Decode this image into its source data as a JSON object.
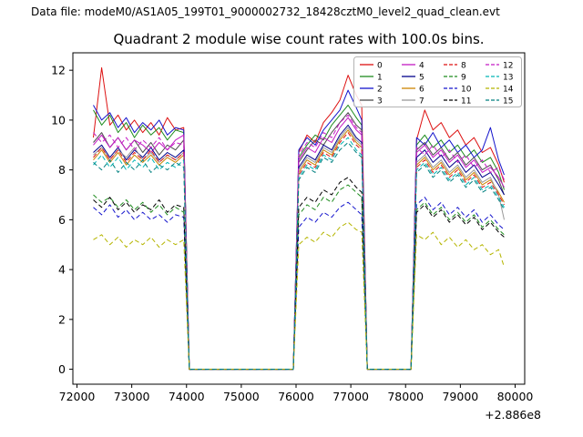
{
  "header": {
    "data_file_label": "Data file: modeM0/AS1A05_199T01_9000002732_18428cztM0_level2_quad_clean.evt"
  },
  "chart_data": {
    "type": "line",
    "title": "Quadrant 2 module wise count rates with 100.0s bins.",
    "xlabel": "",
    "ylabel": "",
    "x_offset_label": "+2.886e8",
    "xlim": [
      71925,
      80175
    ],
    "ylim": [
      -0.6,
      12.7
    ],
    "x_ticks": [
      72000,
      73000,
      74000,
      75000,
      76000,
      77000,
      78000,
      79000,
      80000
    ],
    "y_ticks": [
      0,
      2,
      4,
      6,
      8,
      10,
      12
    ],
    "grid": false,
    "legend_position": "upper-right, 4 columns, column-major",
    "x": [
      72300,
      72450,
      72600,
      72750,
      72900,
      73050,
      73200,
      73350,
      73500,
      73650,
      73800,
      73950,
      74050,
      75950,
      76050,
      76200,
      76350,
      76500,
      76650,
      76800,
      76950,
      77100,
      77200,
      77300,
      78100,
      78200,
      78350,
      78500,
      78650,
      78800,
      78950,
      79100,
      79250,
      79400,
      79550,
      79700,
      79800
    ],
    "series": [
      {
        "name": "0",
        "color": "#dd1111",
        "dash": false,
        "values": [
          9.3,
          12.1,
          9.8,
          10.2,
          9.6,
          10.0,
          9.5,
          9.9,
          9.4,
          10.1,
          9.6,
          9.7,
          0,
          0,
          8.7,
          9.4,
          9.1,
          9.9,
          10.3,
          10.8,
          11.8,
          11.0,
          10.6,
          0,
          0,
          9.2,
          10.4,
          9.6,
          9.9,
          9.3,
          9.6,
          9.0,
          9.3,
          8.7,
          8.9,
          8.2,
          7.5
        ]
      },
      {
        "name": "1",
        "color": "#1e8c1e",
        "dash": false,
        "values": [
          10.4,
          9.8,
          10.2,
          9.5,
          9.9,
          9.3,
          9.8,
          9.4,
          9.7,
          9.2,
          9.6,
          9.5,
          0,
          0,
          8.5,
          9.0,
          9.4,
          9.2,
          9.8,
          10.2,
          10.6,
          10.1,
          9.8,
          0,
          0,
          9.0,
          9.4,
          8.9,
          9.2,
          8.7,
          9.0,
          8.5,
          8.8,
          8.3,
          8.5,
          7.9,
          7.2
        ]
      },
      {
        "name": "2",
        "color": "#1414cc",
        "dash": false,
        "values": [
          10.6,
          10.0,
          10.3,
          9.7,
          10.1,
          9.5,
          9.9,
          9.6,
          10.0,
          9.4,
          9.7,
          9.6,
          0,
          0,
          8.8,
          9.3,
          9.0,
          9.6,
          10.0,
          10.4,
          11.2,
          10.5,
          10.0,
          0,
          0,
          9.3,
          9.0,
          9.5,
          8.9,
          9.2,
          8.7,
          9.0,
          8.5,
          8.8,
          9.7,
          8.4,
          7.8
        ]
      },
      {
        "name": "3",
        "color": "#4d4d4d",
        "dash": false,
        "values": [
          9.1,
          9.5,
          8.9,
          9.3,
          8.8,
          9.2,
          8.7,
          9.1,
          8.6,
          9.0,
          8.8,
          9.2,
          0,
          0,
          8.3,
          8.8,
          9.2,
          9.0,
          9.5,
          9.9,
          10.3,
          9.8,
          9.6,
          0,
          0,
          8.8,
          9.1,
          8.6,
          8.9,
          8.4,
          8.7,
          8.2,
          8.5,
          8.0,
          8.2,
          7.6,
          7.0
        ]
      },
      {
        "name": "4",
        "color": "#c41ac4",
        "dash": false,
        "values": [
          9.0,
          9.4,
          8.9,
          9.3,
          8.8,
          9.2,
          9.0,
          8.7,
          9.1,
          8.8,
          9.2,
          9.4,
          0,
          0,
          8.4,
          8.9,
          8.7,
          9.3,
          9.1,
          9.7,
          10.1,
          9.6,
          9.4,
          0,
          0,
          8.7,
          9.0,
          8.5,
          8.8,
          8.3,
          8.6,
          8.1,
          8.4,
          7.9,
          8.1,
          7.7,
          7.3
        ]
      },
      {
        "name": "5",
        "color": "#00008b",
        "dash": false,
        "values": [
          8.7,
          9.0,
          8.5,
          8.9,
          8.4,
          8.8,
          8.5,
          8.9,
          8.4,
          8.7,
          8.5,
          8.8,
          0,
          0,
          8.1,
          8.6,
          8.4,
          9.0,
          8.8,
          9.4,
          9.8,
          9.3,
          9.1,
          0,
          0,
          8.5,
          8.8,
          8.3,
          8.6,
          8.1,
          8.4,
          7.9,
          8.2,
          7.7,
          7.9,
          7.4,
          7.0
        ]
      },
      {
        "name": "6",
        "color": "#cc8400",
        "dash": false,
        "values": [
          8.4,
          8.8,
          8.3,
          8.7,
          8.2,
          8.6,
          8.3,
          8.6,
          8.2,
          8.5,
          8.3,
          8.6,
          0,
          0,
          7.9,
          8.4,
          8.2,
          8.8,
          8.6,
          9.2,
          9.6,
          9.1,
          8.9,
          0,
          0,
          8.2,
          8.5,
          8.0,
          8.3,
          7.8,
          8.1,
          7.6,
          7.9,
          7.4,
          7.6,
          7.1,
          6.7
        ]
      },
      {
        "name": "7",
        "color": "#999999",
        "dash": false,
        "values": [
          8.6,
          8.9,
          8.4,
          8.8,
          8.5,
          8.9,
          8.4,
          8.7,
          8.3,
          8.6,
          8.4,
          8.7,
          0,
          0,
          8.0,
          8.5,
          8.3,
          8.9,
          8.7,
          9.3,
          9.7,
          9.2,
          9.0,
          0,
          0,
          8.3,
          8.6,
          8.1,
          8.4,
          7.9,
          8.2,
          7.7,
          8.0,
          7.5,
          7.7,
          7.0,
          6.0
        ]
      },
      {
        "name": "8",
        "color": "#dd1111",
        "dash": true,
        "values": [
          8.5,
          8.9,
          8.4,
          8.8,
          8.3,
          8.7,
          8.4,
          8.8,
          8.3,
          8.6,
          8.4,
          8.7,
          0,
          0,
          7.8,
          8.3,
          8.1,
          8.7,
          8.5,
          9.1,
          9.5,
          9.0,
          8.8,
          0,
          0,
          8.1,
          8.4,
          7.9,
          8.2,
          7.7,
          8.0,
          7.5,
          7.8,
          7.3,
          7.5,
          7.0,
          6.6
        ]
      },
      {
        "name": "9",
        "color": "#1e8c1e",
        "dash": true,
        "values": [
          7.0,
          6.7,
          6.9,
          6.5,
          6.8,
          6.4,
          6.7,
          6.3,
          6.6,
          6.2,
          6.5,
          6.3,
          0,
          0,
          6.2,
          6.6,
          6.4,
          6.9,
          6.7,
          7.2,
          7.4,
          7.1,
          6.9,
          0,
          0,
          6.4,
          6.7,
          6.2,
          6.5,
          6.0,
          6.3,
          5.9,
          6.2,
          5.7,
          6.0,
          5.6,
          5.4
        ]
      },
      {
        "name": "10",
        "color": "#1414cc",
        "dash": true,
        "values": [
          6.5,
          6.2,
          6.6,
          6.1,
          6.4,
          6.0,
          6.3,
          6.0,
          6.2,
          5.9,
          6.2,
          6.1,
          0,
          0,
          5.7,
          6.1,
          5.9,
          6.3,
          6.1,
          6.5,
          6.7,
          6.4,
          6.2,
          0,
          0,
          6.6,
          6.9,
          6.4,
          6.7,
          6.2,
          6.5,
          6.1,
          6.4,
          5.9,
          6.2,
          5.8,
          5.6
        ]
      },
      {
        "name": "11",
        "color": "#000000",
        "dash": true,
        "values": [
          6.8,
          6.5,
          6.9,
          6.4,
          6.7,
          6.3,
          6.6,
          6.4,
          6.8,
          6.3,
          6.6,
          6.5,
          0,
          0,
          6.5,
          6.9,
          6.7,
          7.2,
          7.0,
          7.5,
          7.7,
          7.3,
          7.1,
          0,
          0,
          6.3,
          6.6,
          6.1,
          6.4,
          5.9,
          6.2,
          5.8,
          6.1,
          5.6,
          5.9,
          5.5,
          5.3
        ]
      },
      {
        "name": "12",
        "color": "#c41ac4",
        "dash": true,
        "values": [
          9.5,
          9.1,
          9.4,
          8.9,
          9.3,
          8.8,
          9.2,
          8.9,
          9.3,
          8.8,
          9.1,
          9.0,
          0,
          0,
          8.6,
          9.1,
          8.9,
          9.5,
          9.3,
          9.9,
          10.2,
          9.7,
          9.5,
          0,
          0,
          8.9,
          8.6,
          9.0,
          8.5,
          8.8,
          8.3,
          8.6,
          8.1,
          8.4,
          7.9,
          8.1,
          7.6
        ]
      },
      {
        "name": "13",
        "color": "#00b5b5",
        "dash": true,
        "values": [
          8.2,
          8.6,
          8.1,
          8.5,
          8.0,
          8.4,
          8.1,
          8.5,
          8.0,
          8.3,
          8.1,
          8.4,
          0,
          0,
          7.7,
          8.2,
          8.0,
          8.6,
          8.4,
          9.0,
          9.3,
          8.8,
          8.6,
          0,
          0,
          8.0,
          8.3,
          7.8,
          8.1,
          7.6,
          7.9,
          7.4,
          7.7,
          7.2,
          7.4,
          6.9,
          6.5
        ]
      },
      {
        "name": "14",
        "color": "#b5b500",
        "dash": true,
        "values": [
          5.2,
          5.4,
          5.0,
          5.3,
          4.9,
          5.2,
          5.0,
          5.3,
          4.9,
          5.2,
          5.0,
          5.2,
          0,
          0,
          5.0,
          5.3,
          5.1,
          5.5,
          5.3,
          5.7,
          5.9,
          5.6,
          5.5,
          0,
          0,
          5.4,
          5.2,
          5.5,
          5.0,
          5.3,
          4.9,
          5.2,
          4.8,
          5.0,
          4.6,
          4.8,
          4.1
        ]
      },
      {
        "name": "15",
        "color": "#008080",
        "dash": true,
        "values": [
          8.3,
          8.0,
          8.4,
          7.9,
          8.3,
          8.0,
          8.4,
          7.9,
          8.2,
          8.0,
          8.3,
          8.1,
          0,
          0,
          7.6,
          8.1,
          7.9,
          8.5,
          8.3,
          8.8,
          9.1,
          8.7,
          8.5,
          0,
          0,
          7.9,
          8.2,
          7.7,
          8.0,
          7.5,
          7.8,
          7.3,
          7.6,
          7.1,
          7.3,
          6.8,
          6.4
        ]
      }
    ]
  }
}
